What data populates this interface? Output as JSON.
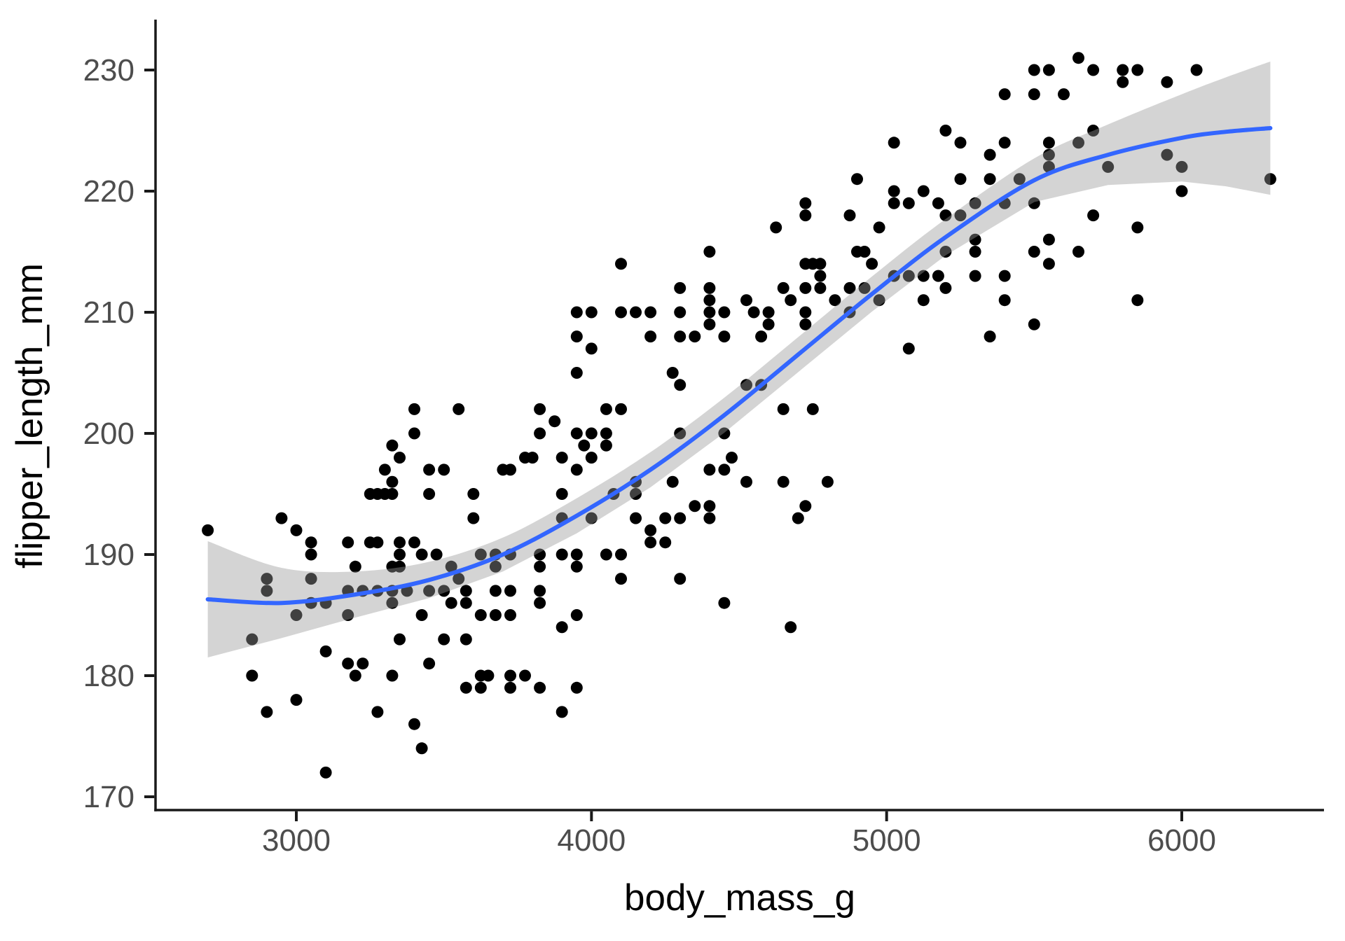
{
  "chart_data": {
    "type": "scatter",
    "title": "",
    "xlabel": "body_mass_g",
    "ylabel": "flipper_length_mm",
    "x_ticks": [
      3000,
      4000,
      5000,
      6000
    ],
    "y_ticks": [
      170,
      180,
      190,
      200,
      210,
      220,
      230
    ],
    "xlim": [
      2520,
      6500
    ],
    "ylim": [
      169,
      234
    ],
    "grid": "off",
    "legend": "none",
    "theme": "classic (left and bottom axis lines only)",
    "colors": {
      "point": "#000000",
      "smooth_line": "#3366FF",
      "ci_band": "rgba(153,153,153,0.42)",
      "axis_line": "#1a1a1a",
      "tick_label": "#4d4d4d",
      "axis_title": "#000000",
      "background": "#ffffff"
    },
    "smooth_line": [
      [
        2700,
        186.3
      ],
      [
        2950,
        186.0
      ],
      [
        3200,
        186.7
      ],
      [
        3450,
        187.9
      ],
      [
        3700,
        190.0
      ],
      [
        3950,
        193.2
      ],
      [
        4200,
        197.0
      ],
      [
        4450,
        201.5
      ],
      [
        4700,
        206.5
      ],
      [
        4950,
        211.5
      ],
      [
        5200,
        216.2
      ],
      [
        5500,
        220.9
      ],
      [
        5750,
        223.0
      ],
      [
        6000,
        224.4
      ],
      [
        6150,
        224.9
      ],
      [
        6300,
        225.2
      ]
    ],
    "ci_halfwidth": [
      [
        2700,
        4.8
      ],
      [
        2950,
        2.9
      ],
      [
        3200,
        1.9
      ],
      [
        3450,
        1.5
      ],
      [
        3700,
        1.4
      ],
      [
        3950,
        1.45
      ],
      [
        4200,
        1.45
      ],
      [
        4450,
        1.45
      ],
      [
        4700,
        1.45
      ],
      [
        4950,
        1.45
      ],
      [
        5200,
        1.5
      ],
      [
        5500,
        1.8
      ],
      [
        5750,
        2.5
      ],
      [
        6000,
        3.6
      ],
      [
        6150,
        4.5
      ],
      [
        6300,
        5.5
      ]
    ],
    "points": [
      [
        3100,
        172
      ],
      [
        3425,
        174
      ],
      [
        3400,
        176
      ],
      [
        2900,
        177
      ],
      [
        3275,
        177
      ],
      [
        3900,
        177
      ],
      [
        3000,
        178
      ],
      [
        3575,
        179
      ],
      [
        3625,
        179
      ],
      [
        3725,
        179
      ],
      [
        3825,
        179
      ],
      [
        3950,
        179
      ],
      [
        2850,
        180
      ],
      [
        3200,
        180
      ],
      [
        3325,
        180
      ],
      [
        3625,
        180
      ],
      [
        3650,
        180
      ],
      [
        3725,
        180
      ],
      [
        3775,
        180
      ],
      [
        3175,
        181
      ],
      [
        3225,
        181
      ],
      [
        3450,
        181
      ],
      [
        3100,
        182
      ],
      [
        2850,
        183
      ],
      [
        3350,
        183
      ],
      [
        3500,
        183
      ],
      [
        3575,
        183
      ],
      [
        3900,
        184
      ],
      [
        4675,
        184
      ],
      [
        3000,
        185
      ],
      [
        3175,
        185
      ],
      [
        3425,
        185
      ],
      [
        3625,
        185
      ],
      [
        3675,
        185
      ],
      [
        3725,
        185
      ],
      [
        3950,
        185
      ],
      [
        3050,
        186
      ],
      [
        3100,
        186
      ],
      [
        3325,
        186
      ],
      [
        3525,
        186
      ],
      [
        3575,
        186
      ],
      [
        3825,
        186
      ],
      [
        4450,
        186
      ],
      [
        2900,
        187
      ],
      [
        3175,
        187
      ],
      [
        3225,
        187
      ],
      [
        3275,
        187
      ],
      [
        3325,
        187
      ],
      [
        3375,
        187
      ],
      [
        3450,
        187
      ],
      [
        3500,
        187
      ],
      [
        3575,
        187
      ],
      [
        3675,
        187
      ],
      [
        3725,
        187
      ],
      [
        3825,
        187
      ],
      [
        2900,
        188
      ],
      [
        3050,
        188
      ],
      [
        3550,
        188
      ],
      [
        4100,
        188
      ],
      [
        4300,
        188
      ],
      [
        3200,
        189
      ],
      [
        3325,
        189
      ],
      [
        3350,
        189
      ],
      [
        3525,
        189
      ],
      [
        3675,
        189
      ],
      [
        3825,
        189
      ],
      [
        3950,
        189
      ],
      [
        3050,
        190
      ],
      [
        3350,
        190
      ],
      [
        3425,
        190
      ],
      [
        3475,
        190
      ],
      [
        3625,
        190
      ],
      [
        3675,
        190
      ],
      [
        3725,
        190
      ],
      [
        3825,
        190
      ],
      [
        3900,
        190
      ],
      [
        3950,
        190
      ],
      [
        4050,
        190
      ],
      [
        4100,
        190
      ],
      [
        3050,
        191
      ],
      [
        3175,
        191
      ],
      [
        3250,
        191
      ],
      [
        3275,
        191
      ],
      [
        3350,
        191
      ],
      [
        3400,
        191
      ],
      [
        4200,
        191
      ],
      [
        4250,
        191
      ],
      [
        2700,
        192
      ],
      [
        3000,
        192
      ],
      [
        4200,
        192
      ],
      [
        2950,
        193
      ],
      [
        3600,
        193
      ],
      [
        3900,
        193
      ],
      [
        4000,
        193
      ],
      [
        4150,
        193
      ],
      [
        4250,
        193
      ],
      [
        4300,
        193
      ],
      [
        4400,
        193
      ],
      [
        4700,
        193
      ],
      [
        4350,
        194
      ],
      [
        4400,
        194
      ],
      [
        4725,
        194
      ],
      [
        3250,
        195
      ],
      [
        3275,
        195
      ],
      [
        3300,
        195
      ],
      [
        3325,
        195
      ],
      [
        3450,
        195
      ],
      [
        3600,
        195
      ],
      [
        3900,
        195
      ],
      [
        4075,
        195
      ],
      [
        4150,
        195
      ],
      [
        3325,
        196
      ],
      [
        4150,
        196
      ],
      [
        4275,
        196
      ],
      [
        4525,
        196
      ],
      [
        4650,
        196
      ],
      [
        4800,
        196
      ],
      [
        3300,
        197
      ],
      [
        3450,
        197
      ],
      [
        3500,
        197
      ],
      [
        3700,
        197
      ],
      [
        3725,
        197
      ],
      [
        3950,
        197
      ],
      [
        4400,
        197
      ],
      [
        4450,
        197
      ],
      [
        3350,
        198
      ],
      [
        3775,
        198
      ],
      [
        3800,
        198
      ],
      [
        3900,
        198
      ],
      [
        4000,
        198
      ],
      [
        4475,
        198
      ],
      [
        3325,
        199
      ],
      [
        3975,
        199
      ],
      [
        4050,
        199
      ],
      [
        3400,
        200
      ],
      [
        3825,
        200
      ],
      [
        3950,
        200
      ],
      [
        4000,
        200
      ],
      [
        4050,
        200
      ],
      [
        4300,
        200
      ],
      [
        4450,
        200
      ],
      [
        3875,
        201
      ],
      [
        3400,
        202
      ],
      [
        3550,
        202
      ],
      [
        3825,
        202
      ],
      [
        4050,
        202
      ],
      [
        4100,
        202
      ],
      [
        4650,
        202
      ],
      [
        4750,
        202
      ],
      [
        4300,
        204
      ],
      [
        4525,
        204
      ],
      [
        4575,
        204
      ],
      [
        3950,
        205
      ],
      [
        4275,
        205
      ],
      [
        4000,
        207
      ],
      [
        5075,
        207
      ],
      [
        3950,
        208
      ],
      [
        4200,
        208
      ],
      [
        4300,
        208
      ],
      [
        4350,
        208
      ],
      [
        4450,
        208
      ],
      [
        4575,
        208
      ],
      [
        5350,
        208
      ],
      [
        4400,
        209
      ],
      [
        4600,
        209
      ],
      [
        4725,
        209
      ],
      [
        5500,
        209
      ],
      [
        3950,
        210
      ],
      [
        4000,
        210
      ],
      [
        4100,
        210
      ],
      [
        4150,
        210
      ],
      [
        4200,
        210
      ],
      [
        4300,
        210
      ],
      [
        4400,
        210
      ],
      [
        4450,
        210
      ],
      [
        4550,
        210
      ],
      [
        4600,
        210
      ],
      [
        4725,
        210
      ],
      [
        4875,
        210
      ],
      [
        4400,
        211
      ],
      [
        4525,
        211
      ],
      [
        4675,
        211
      ],
      [
        4825,
        211
      ],
      [
        4975,
        211
      ],
      [
        5125,
        211
      ],
      [
        5400,
        211
      ],
      [
        5850,
        211
      ],
      [
        4300,
        212
      ],
      [
        4400,
        212
      ],
      [
        4650,
        212
      ],
      [
        4725,
        212
      ],
      [
        4775,
        212
      ],
      [
        4875,
        212
      ],
      [
        4925,
        212
      ],
      [
        5200,
        212
      ],
      [
        4775,
        213
      ],
      [
        5025,
        213
      ],
      [
        5075,
        213
      ],
      [
        5125,
        213
      ],
      [
        5175,
        213
      ],
      [
        5300,
        213
      ],
      [
        5400,
        213
      ],
      [
        4100,
        214
      ],
      [
        4725,
        214
      ],
      [
        4750,
        214
      ],
      [
        4775,
        214
      ],
      [
        4950,
        214
      ],
      [
        5550,
        214
      ],
      [
        4400,
        215
      ],
      [
        4900,
        215
      ],
      [
        4925,
        215
      ],
      [
        5200,
        215
      ],
      [
        5300,
        215
      ],
      [
        5500,
        215
      ],
      [
        5650,
        215
      ],
      [
        5300,
        216
      ],
      [
        5550,
        216
      ],
      [
        4625,
        217
      ],
      [
        4975,
        217
      ],
      [
        5850,
        217
      ],
      [
        4725,
        218
      ],
      [
        4875,
        218
      ],
      [
        5200,
        218
      ],
      [
        5250,
        218
      ],
      [
        5700,
        218
      ],
      [
        4725,
        219
      ],
      [
        5025,
        219
      ],
      [
        5075,
        219
      ],
      [
        5175,
        219
      ],
      [
        5300,
        219
      ],
      [
        5400,
        219
      ],
      [
        5500,
        219
      ],
      [
        5025,
        220
      ],
      [
        5125,
        220
      ],
      [
        6000,
        220
      ],
      [
        4900,
        221
      ],
      [
        5250,
        221
      ],
      [
        5350,
        221
      ],
      [
        5450,
        221
      ],
      [
        6300,
        221
      ],
      [
        5550,
        222
      ],
      [
        5750,
        222
      ],
      [
        6000,
        222
      ],
      [
        5350,
        223
      ],
      [
        5550,
        223
      ],
      [
        5950,
        223
      ],
      [
        5025,
        224
      ],
      [
        5250,
        224
      ],
      [
        5400,
        224
      ],
      [
        5550,
        224
      ],
      [
        5650,
        224
      ],
      [
        5200,
        225
      ],
      [
        5700,
        225
      ],
      [
        5400,
        228
      ],
      [
        5500,
        228
      ],
      [
        5600,
        228
      ],
      [
        5800,
        229
      ],
      [
        5950,
        229
      ],
      [
        5500,
        230
      ],
      [
        5550,
        230
      ],
      [
        5700,
        230
      ],
      [
        5800,
        230
      ],
      [
        5850,
        230
      ],
      [
        6050,
        230
      ],
      [
        5650,
        231
      ]
    ]
  }
}
